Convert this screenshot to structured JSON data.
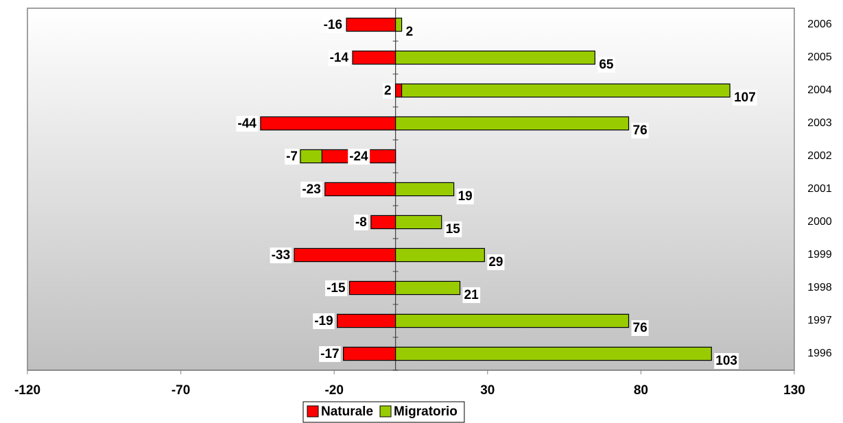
{
  "chart_data": {
    "type": "bar",
    "orientation": "horizontal",
    "stacked": true,
    "categories": [
      "1996",
      "1997",
      "1998",
      "1999",
      "2000",
      "2001",
      "2002",
      "2003",
      "2004",
      "2005",
      "2006"
    ],
    "series": [
      {
        "name": "Naturale",
        "color": "#ff0000",
        "values": [
          -17,
          -19,
          -15,
          -33,
          -8,
          -23,
          -24,
          -44,
          2,
          -14,
          -16
        ]
      },
      {
        "name": "Migratorio",
        "color": "#99cc00",
        "values": [
          103,
          76,
          21,
          29,
          15,
          19,
          -7,
          76,
          107,
          65,
          2
        ]
      }
    ],
    "xlim": [
      -120,
      130
    ],
    "xticks": [
      -120,
      -70,
      -20,
      30,
      80,
      130
    ],
    "legend": "bottom"
  }
}
